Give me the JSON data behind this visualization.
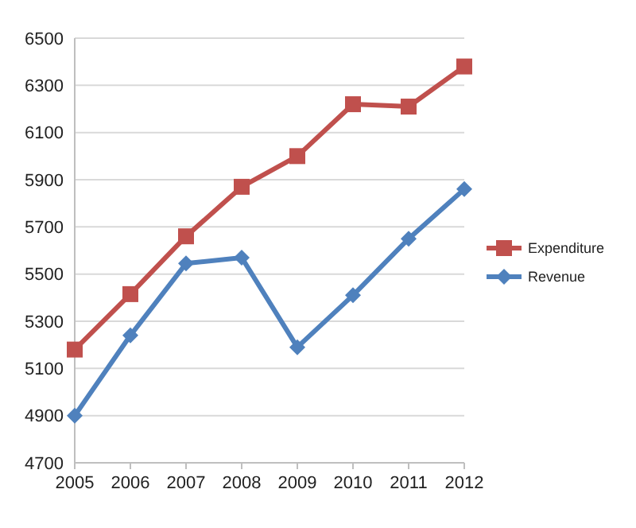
{
  "chart_data": {
    "type": "line",
    "x": [
      2005,
      2006,
      2007,
      2008,
      2009,
      2010,
      2011,
      2012
    ],
    "xlim": [
      2005,
      2012
    ],
    "xticks": [
      2005,
      2006,
      2007,
      2008,
      2009,
      2010,
      2011,
      2012
    ],
    "ylim": [
      4700,
      6500
    ],
    "yticks": [
      4700,
      4900,
      5100,
      5300,
      5500,
      5700,
      5900,
      6100,
      6300,
      6500
    ],
    "grid": "y",
    "legend": "right",
    "series": [
      {
        "name": "Expenditure",
        "color": "#c0504d",
        "marker": "square",
        "values": [
          5180,
          5415,
          5660,
          5870,
          6000,
          6220,
          6210,
          6380
        ]
      },
      {
        "name": "Revenue",
        "color": "#4f81bd",
        "marker": "diamond",
        "values": [
          4900,
          5240,
          5545,
          5570,
          5190,
          5410,
          5650,
          5860
        ]
      }
    ]
  }
}
